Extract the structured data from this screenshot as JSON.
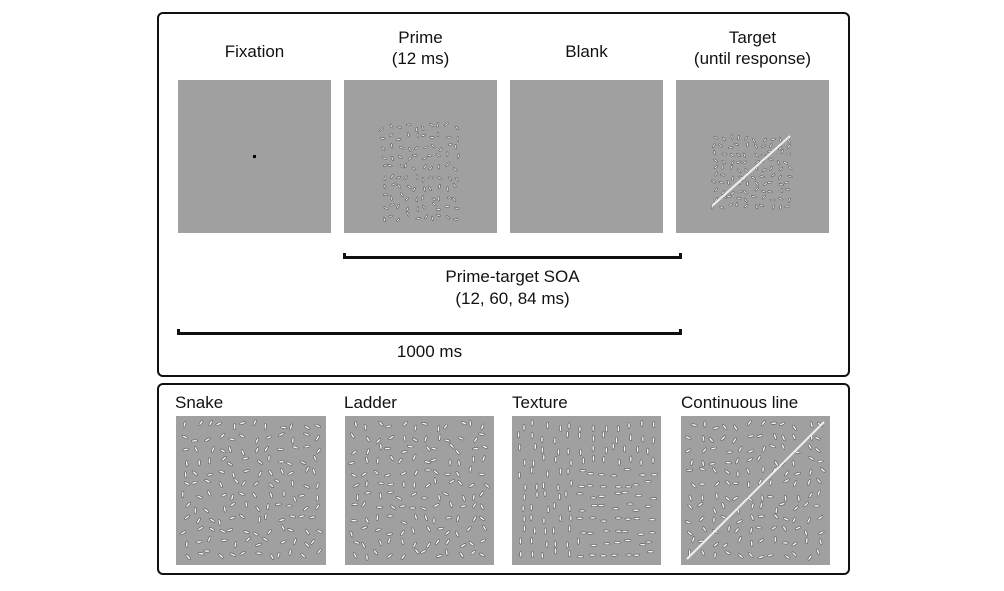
{
  "sequence": {
    "frames": [
      {
        "title": "Fixation",
        "subtitle": ""
      },
      {
        "title": "Prime",
        "subtitle": "(12 ms)"
      },
      {
        "title": "Blank",
        "subtitle": ""
      },
      {
        "title": "Target",
        "subtitle": "(until response)"
      }
    ],
    "soa_label": "Prime-target SOA",
    "soa_values": "(12, 60, 84 ms)",
    "total_label": "1000 ms"
  },
  "stimuli": {
    "types": [
      {
        "label": "Snake"
      },
      {
        "label": "Ladder"
      },
      {
        "label": "Texture"
      },
      {
        "label": "Continuous line"
      }
    ]
  },
  "colors": {
    "panel_gray": "#a0a0a0",
    "border": "#111111"
  }
}
